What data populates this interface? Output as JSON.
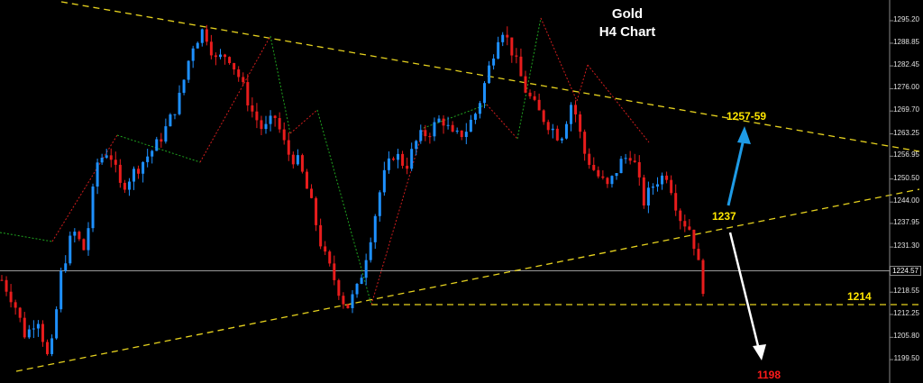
{
  "chart_data": {
    "type": "candlestick",
    "title": "Gold",
    "subtitle": "H4 Chart",
    "y_axis_ticks": [
      "1295.20",
      "1288.85",
      "1282.45",
      "1276.00",
      "1269.70",
      "1263.25",
      "1256.95",
      "1250.50",
      "1244.00",
      "1237.95",
      "1231.30",
      "1224.57",
      "1218.55",
      "1212.25",
      "1205.80",
      "1199.50"
    ],
    "current_price": "1224.57",
    "ylim": [
      1195,
      1298
    ],
    "colors": {
      "bull": "#1e90ff",
      "bear": "#e81c1c",
      "trend": "#e6d21e",
      "white": "#ffffff",
      "target_up": "#1e9be6"
    },
    "levels": [
      {
        "label": "1257-59",
        "value": 1258,
        "color": "#ffe600"
      },
      {
        "label": "1237",
        "value": 1237,
        "color": "#ffe600"
      },
      {
        "label": "1214",
        "value": 1214,
        "color": "#ffe600"
      },
      {
        "label": "1198",
        "value": 1198,
        "color": "#ff1a1a"
      }
    ],
    "price_path": [
      1222,
      1216,
      1206,
      1212,
      1198,
      1224,
      1236,
      1230,
      1255,
      1259,
      1248,
      1252,
      1256,
      1260,
      1266,
      1274,
      1288,
      1293,
      1284,
      1286,
      1279,
      1270,
      1264,
      1268,
      1258,
      1255,
      1244,
      1230,
      1222,
      1214,
      1220,
      1234,
      1250,
      1258,
      1254,
      1262,
      1264,
      1268,
      1262,
      1264,
      1270,
      1282,
      1294,
      1286,
      1276,
      1270,
      1266,
      1262,
      1273,
      1258,
      1252,
      1248,
      1255,
      1258,
      1244,
      1250,
      1252,
      1240,
      1236,
      1220
    ]
  }
}
